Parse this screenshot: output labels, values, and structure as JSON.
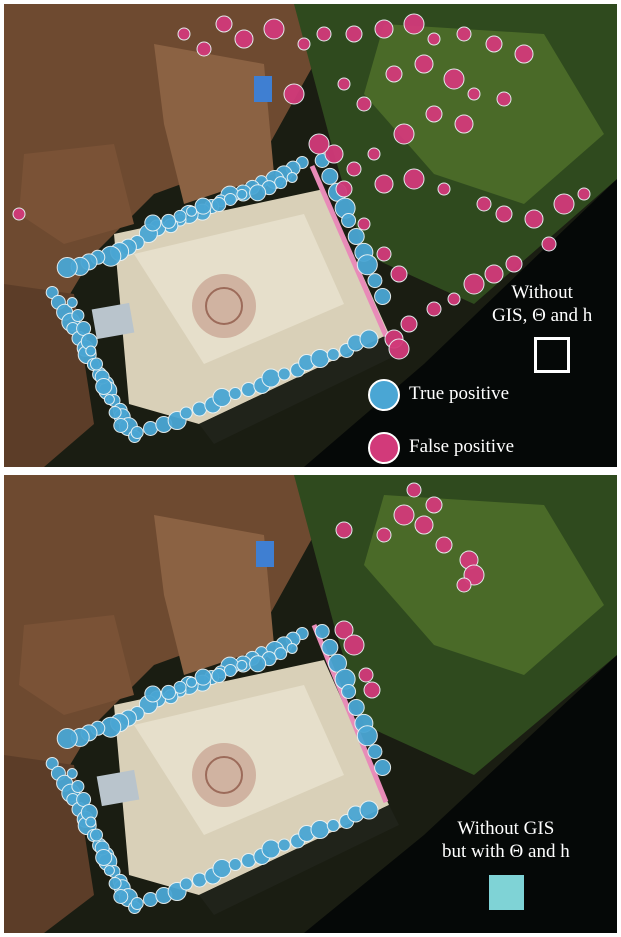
{
  "panels": [
    {
      "id": "top",
      "caption_lines": [
        "Without",
        "GIS, Θ and h"
      ],
      "swatch_color": "#050807",
      "swatch_border": "#ffffff"
    },
    {
      "id": "bottom",
      "caption_lines": [
        "Without GIS",
        "but with Θ and h"
      ],
      "swatch_color": "#7fd3d6",
      "swatch_border": "#7fd3d6"
    }
  ],
  "legend": {
    "true_positive": {
      "label": "True positive",
      "color": "#4aa6d4"
    },
    "false_positive": {
      "label": "False positive",
      "color": "#d23a7a"
    }
  },
  "colors": {
    "background": "#050807",
    "plaza": "#d9d0b8",
    "roofs": "#8a5a38",
    "park": "#2e4a1f",
    "divider": "#ffffff",
    "track_line": "#e88bb8"
  }
}
